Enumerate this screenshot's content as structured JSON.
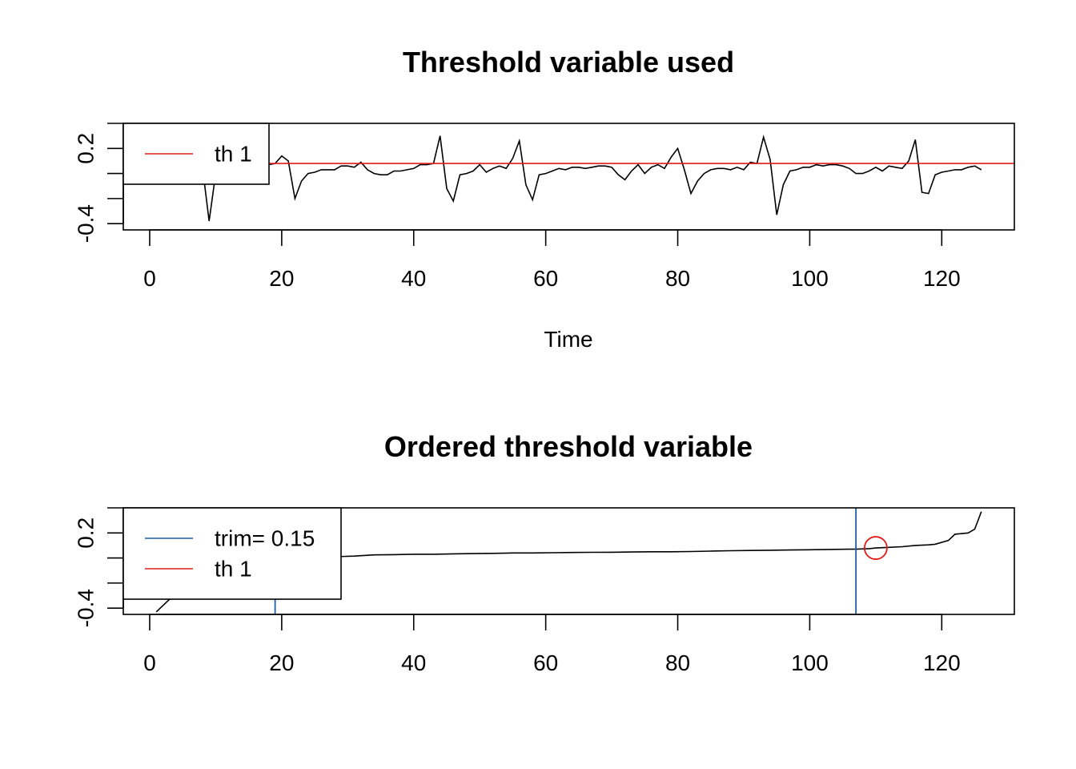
{
  "colors": {
    "series": "#000000",
    "threshold": "#DF1B1B",
    "trim": "#1F5FA8"
  },
  "chart_data": [
    {
      "type": "line",
      "title": "Threshold variable used",
      "xlabel": "Time",
      "ylabel": "",
      "xlim": [
        -4,
        131
      ],
      "ylim": [
        -0.45,
        0.4
      ],
      "xticks": [
        0,
        20,
        40,
        60,
        80,
        100,
        120
      ],
      "yticks": [
        -0.4,
        -0.2,
        0,
        0.2,
        0.4
      ],
      "ytick_labels": [
        "-0.4",
        "",
        "",
        "0.2",
        ""
      ],
      "series": [
        {
          "x": [
            1,
            2,
            3,
            4,
            5,
            6,
            7,
            8,
            9,
            10,
            11,
            12,
            13,
            14,
            15,
            16,
            17,
            18,
            19,
            20,
            21,
            22,
            23,
            24,
            25,
            26,
            27,
            28,
            29,
            30,
            31,
            32,
            33,
            34,
            35,
            36,
            37,
            38,
            39,
            40,
            41,
            42,
            43,
            44,
            45,
            46,
            47,
            48,
            49,
            50,
            51,
            52,
            53,
            54,
            55,
            56,
            57,
            58,
            59,
            60,
            61,
            62,
            63,
            64,
            65,
            66,
            67,
            68,
            69,
            70,
            71,
            72,
            73,
            74,
            75,
            76,
            77,
            78,
            79,
            80,
            81,
            82,
            83,
            84,
            85,
            86,
            87,
            88,
            89,
            90,
            91,
            92,
            93,
            94,
            95,
            96,
            97,
            98,
            99,
            100,
            101,
            102,
            103,
            104,
            105,
            106,
            107,
            108,
            109,
            110,
            111,
            112,
            113,
            114,
            115,
            116,
            117,
            118,
            119,
            120,
            121,
            122,
            123,
            124,
            125,
            126
          ],
          "values": [
            0.05,
            0.0,
            0.06,
            0.08,
            0.06,
            0.1,
            0.04,
            0.05,
            -0.38,
            0.0,
            -0.02,
            0.03,
            0.05,
            0.07,
            0.05,
            0.06,
            0.05,
            0.07,
            0.08,
            0.14,
            0.1,
            -0.2,
            -0.06,
            0.0,
            0.01,
            0.03,
            0.03,
            0.03,
            0.06,
            0.06,
            0.05,
            0.09,
            0.03,
            0.0,
            -0.01,
            -0.01,
            0.02,
            0.02,
            0.03,
            0.04,
            0.07,
            0.07,
            0.08,
            0.3,
            -0.12,
            -0.22,
            -0.01,
            0.0,
            0.02,
            0.07,
            0.01,
            0.04,
            0.06,
            0.04,
            0.12,
            0.26,
            -0.09,
            -0.21,
            -0.01,
            0.0,
            0.02,
            0.04,
            0.03,
            0.05,
            0.05,
            0.04,
            0.05,
            0.06,
            0.06,
            0.05,
            -0.01,
            -0.05,
            0.02,
            0.07,
            0.0,
            0.05,
            0.07,
            0.04,
            0.13,
            0.2,
            0.03,
            -0.16,
            -0.06,
            0.0,
            0.03,
            0.04,
            0.04,
            0.03,
            0.05,
            0.03,
            0.09,
            0.08,
            0.29,
            0.11,
            -0.33,
            -0.09,
            0.02,
            0.03,
            0.05,
            0.05,
            0.07,
            0.06,
            0.07,
            0.07,
            0.06,
            0.04,
            0.0,
            0.0,
            0.02,
            0.05,
            0.02,
            0.06,
            0.05,
            0.04,
            0.1,
            0.27,
            -0.15,
            -0.16,
            -0.01,
            0.01,
            0.02,
            0.03,
            0.03,
            0.05,
            0.06,
            0.03
          ]
        }
      ],
      "threshold": 0.08,
      "legend": {
        "position": "top-left",
        "entries": [
          {
            "label": "th 1",
            "color_key": "threshold"
          }
        ]
      }
    },
    {
      "type": "line",
      "title": "Ordered threshold variable",
      "xlabel": "",
      "ylabel": "",
      "xlim": [
        -4,
        131
      ],
      "ylim": [
        -0.45,
        0.4
      ],
      "xticks": [
        0,
        20,
        40,
        60,
        80,
        100,
        120
      ],
      "yticks": [
        -0.4,
        -0.2,
        0,
        0.2,
        0.4
      ],
      "ytick_labels": [
        "-0.4",
        "",
        "",
        "0.2",
        ""
      ],
      "series": [
        {
          "x": [
            1,
            3,
            5,
            7,
            9,
            12,
            15,
            18,
            19,
            22,
            25,
            28,
            31,
            34,
            37,
            40,
            43,
            46,
            49,
            52,
            55,
            58,
            61,
            64,
            67,
            70,
            73,
            76,
            79,
            82,
            85,
            88,
            91,
            94,
            97,
            100,
            103,
            106,
            107,
            109,
            110,
            112,
            114,
            116,
            118,
            119,
            121,
            122,
            124,
            125,
            126
          ],
          "values": [
            -0.43,
            -0.33,
            -0.22,
            -0.16,
            -0.12,
            -0.09,
            -0.06,
            -0.03,
            -0.02,
            0.0,
            0.005,
            0.01,
            0.015,
            0.025,
            0.027,
            0.03,
            0.03,
            0.033,
            0.035,
            0.037,
            0.04,
            0.04,
            0.042,
            0.044,
            0.045,
            0.046,
            0.048,
            0.05,
            0.05,
            0.052,
            0.055,
            0.058,
            0.06,
            0.062,
            0.064,
            0.066,
            0.068,
            0.07,
            0.07,
            0.075,
            0.08,
            0.085,
            0.09,
            0.1,
            0.105,
            0.11,
            0.14,
            0.19,
            0.2,
            0.23,
            0.37
          ]
        }
      ],
      "trim_lines": [
        19,
        107
      ],
      "threshold_point": {
        "x": 110,
        "y": 0.08
      },
      "legend": {
        "position": "top-left",
        "entries": [
          {
            "label": "trim= 0.15",
            "color_key": "trim"
          },
          {
            "label": "th 1",
            "color_key": "threshold"
          }
        ]
      }
    }
  ]
}
